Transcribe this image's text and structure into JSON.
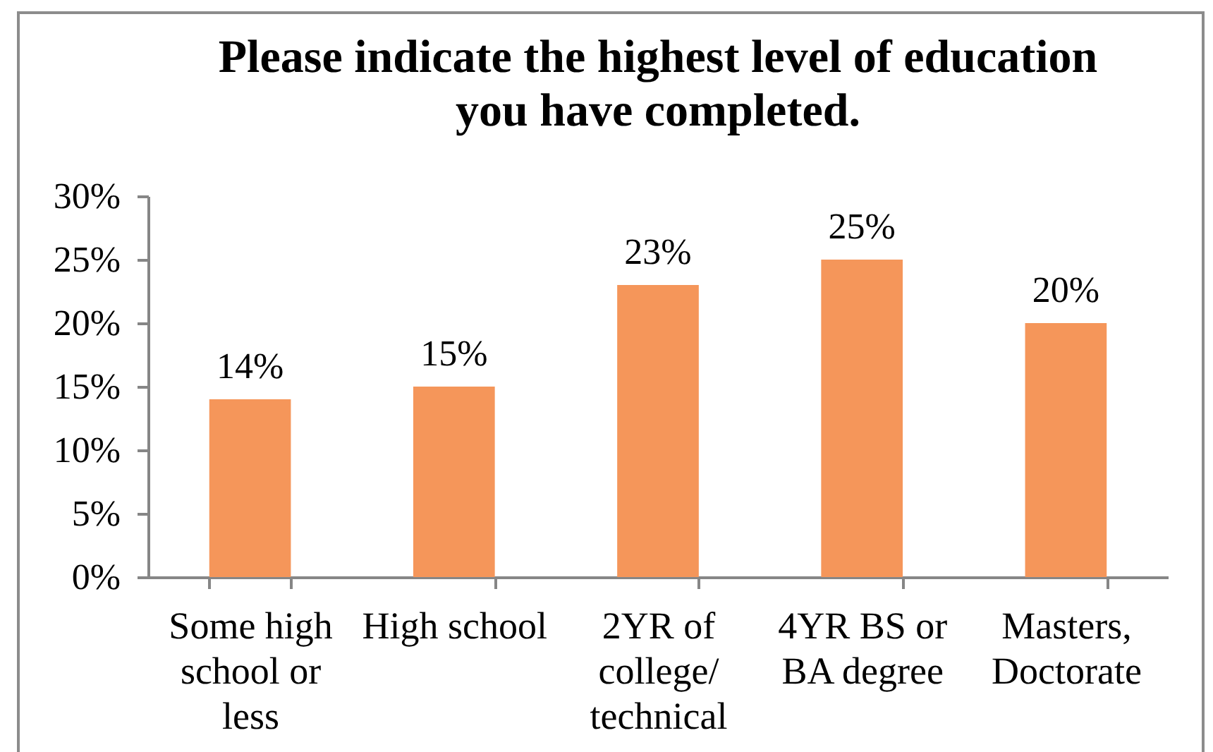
{
  "chart_data": {
    "type": "bar",
    "title": "Please indicate the highest level of education you have completed.",
    "categories": [
      "Some high school or less",
      "High school",
      "2YR of college/ technical",
      "4YR BS or BA degree",
      "Masters, Doctorate"
    ],
    "values": [
      14,
      15,
      23,
      25,
      20
    ],
    "value_labels": [
      "14%",
      "15%",
      "23%",
      "25%",
      "20%"
    ],
    "color": "#f5965a",
    "ylim": [
      0,
      30
    ],
    "yticks": [
      {
        "value": 0,
        "label": "0%"
      },
      {
        "value": 5,
        "label": "5%"
      },
      {
        "value": 10,
        "label": "10%"
      },
      {
        "value": 15,
        "label": "15%"
      },
      {
        "value": 20,
        "label": "20%"
      },
      {
        "value": 25,
        "label": "25%"
      },
      {
        "value": 30,
        "label": "30%"
      }
    ],
    "grid": false
  }
}
